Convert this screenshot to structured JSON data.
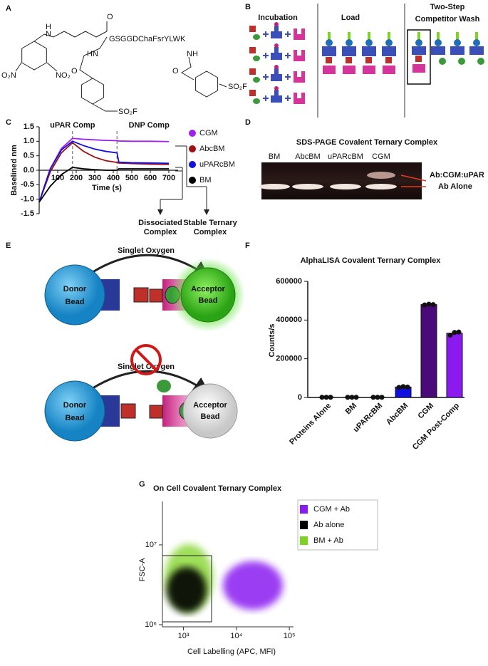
{
  "panel_labels": [
    "A",
    "B",
    "C",
    "D",
    "E",
    "F",
    "G"
  ],
  "panel_a": {
    "peptide": "GSGGDChaFsrYLWK",
    "atoms": [
      "H",
      "N",
      "O",
      "HN",
      "O",
      "O₂N",
      "NO₂",
      "SO₂F",
      "NH",
      "O",
      "SO₂F"
    ]
  },
  "panel_b": {
    "steps": [
      "Incubation",
      "Load"
    ],
    "wash_title": [
      "Two-Step",
      "Competitor Wash"
    ]
  },
  "panel_d": {
    "title": "SDS-PAGE Covalent Ternary Complex",
    "lanes": [
      "BM",
      "AbcBM",
      "uPARcBM",
      "CGM"
    ],
    "bands": [
      "Ab:CGM:uPAR",
      "Ab Alone"
    ]
  },
  "panel_e": {
    "top": {
      "label": "Singlet Oxygen",
      "donor": [
        "Donor",
        "Bead"
      ],
      "acceptor": [
        "Acceptor",
        "Bead"
      ]
    },
    "bottom": {
      "label": "Singlet Oxygen",
      "donor": [
        "Donor",
        "Bead"
      ],
      "acceptor": [
        "Acceptor",
        "Bead"
      ]
    }
  },
  "chart_data": [
    {
      "type": "line",
      "xlabel": "Time (s)",
      "ylabel": "Baselined nm",
      "x": [
        0,
        60,
        120,
        180,
        240,
        300,
        360,
        420,
        430,
        500,
        600,
        700
      ],
      "series": [
        {
          "name": "CGM",
          "color": "#a020f0",
          "values": [
            -1.1,
            0.05,
            0.75,
            1.1,
            1.07,
            1.05,
            1.03,
            1.02,
            1.01,
            1.0,
            1.0,
            0.99
          ]
        },
        {
          "name": "AbcBM",
          "color": "#a01010",
          "values": [
            -1.1,
            -0.05,
            0.6,
            0.95,
            0.65,
            0.45,
            0.33,
            0.27,
            0.25,
            0.23,
            0.21,
            0.2
          ]
        },
        {
          "name": "uPARcBM",
          "color": "#1010e0",
          "values": [
            -1.1,
            0.05,
            0.7,
            1.0,
            0.85,
            0.73,
            0.65,
            0.6,
            0.28,
            0.26,
            0.25,
            0.24
          ]
        },
        {
          "name": "BM",
          "color": "#000000",
          "values": [
            -1.1,
            -0.55,
            -0.15,
            0.1,
            0.05,
            0.02,
            0.0,
            0.0,
            0.05,
            0.05,
            0.05,
            0.05
          ]
        }
      ],
      "events": [
        {
          "x": 180,
          "label": "uPAR Comp"
        },
        {
          "x": 420,
          "label": "DNP Comp"
        }
      ],
      "annotations": [
        [
          "Dissociated",
          "Complex"
        ],
        [
          "Stable Ternary",
          "Complex"
        ]
      ],
      "xlim": [
        0,
        750
      ],
      "xticks": [
        100,
        200,
        300,
        400,
        500,
        600,
        700
      ],
      "ylim": [
        -1.5,
        1.5
      ],
      "yticks": [
        -1.5,
        {
          "value": -1,
          "label": "-1.0"
        },
        -0.5,
        {
          "value": 0,
          "label": "0.0"
        },
        0.5,
        {
          "value": 1,
          "label": "1.0"
        },
        1.5
      ]
    },
    {
      "type": "bar",
      "title": "AlphaLISA Covalent Ternary Complex",
      "ylabel": "Counts/s",
      "categories": [
        "Proteins Alone",
        "BM",
        "uPARcBM",
        "AbcBM",
        "CGM",
        "CGM Post-Comp"
      ],
      "values": [
        1000,
        1000,
        1000,
        54000,
        480000,
        332000
      ],
      "colors": [
        "#000000",
        "#000000",
        "#000000",
        "#1010e0",
        "#4b0a7a",
        "#8a1af0"
      ],
      "points": [
        [
          1000,
          1000,
          1000
        ],
        [
          1000,
          1000,
          1000
        ],
        [
          1000,
          1000,
          1000
        ],
        [
          52000,
          56000,
          54000
        ],
        [
          478000,
          482000,
          480000
        ],
        [
          322000,
          336000,
          338000
        ]
      ],
      "ylim": [
        0,
        600000
      ],
      "yticks": [
        0,
        200000,
        400000,
        600000
      ]
    },
    {
      "type": "scatter",
      "title": "On Cell Covalent Ternary Complex",
      "xlabel": "Cell Labelling (APC, MFI)",
      "ylabel": "FSC-A",
      "xscale": "log",
      "yscale": "log",
      "series": [
        {
          "name": "CGM + Ab",
          "color": "#8a1af0"
        },
        {
          "name": "Ab alone",
          "color": "#000000"
        },
        {
          "name": "BM + Ab",
          "color": "#7ed321"
        }
      ],
      "xlim": [
        400,
        120000
      ],
      "xticks": [
        {
          "value": 1000,
          "label": "10³"
        },
        {
          "value": 10000,
          "label": "10⁴"
        },
        {
          "value": 100000,
          "label": "10⁵"
        }
      ],
      "ylim": [
        940000,
        35000000
      ],
      "yticks": [
        {
          "value": 1000000,
          "label": "10⁶"
        },
        {
          "value": 10000000,
          "label": "10⁷"
        }
      ]
    }
  ]
}
